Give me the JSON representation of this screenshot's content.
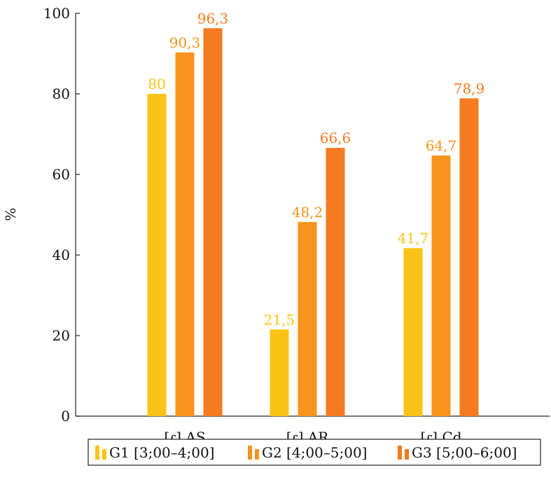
{
  "chart_data": {
    "type": "bar",
    "title": "",
    "xlabel": "",
    "ylabel": "%",
    "ylim": [
      0,
      100
    ],
    "yticks": [
      0,
      20,
      40,
      60,
      80,
      100
    ],
    "categories": [
      "[ɾ] AS",
      "[ɾ] AR",
      "[ɾ] Cd"
    ],
    "series": [
      {
        "name": "G1 [3;00–4;00]",
        "color": "#fbc315",
        "values": [
          80,
          21.5,
          41.7
        ],
        "labels": [
          "80",
          "21,5",
          "41,7"
        ]
      },
      {
        "name": "G2 [4;00–5;00]",
        "color": "#f7941d",
        "values": [
          90.3,
          48.2,
          64.7
        ],
        "labels": [
          "90,3",
          "48,2",
          "64,7"
        ]
      },
      {
        "name": "G3 [5;00–6;00]",
        "color": "#f47b20",
        "values": [
          96.3,
          66.6,
          78.9
        ],
        "labels": [
          "96,3",
          "66,6",
          "78,9"
        ]
      }
    ],
    "grid": false,
    "legend_position": "bottom"
  }
}
